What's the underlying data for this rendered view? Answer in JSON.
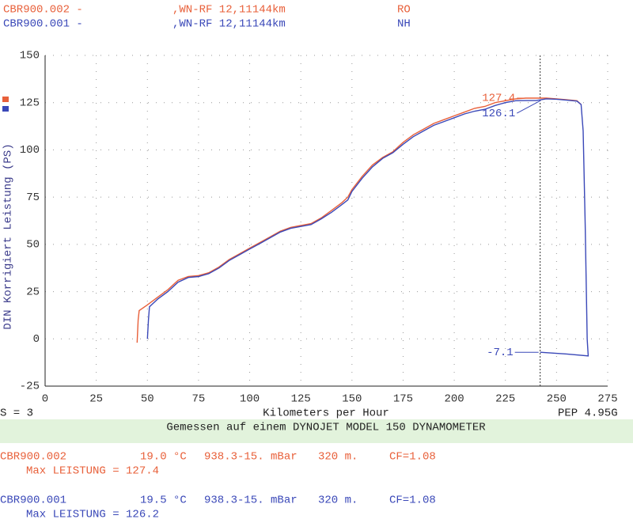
{
  "header": {
    "lines": [
      {
        "name": "CBR900.002 -",
        "info": ",WN-RF 12,11144km",
        "tag": "RO",
        "color": "#e8603a"
      },
      {
        "name": "CBR900.001 -",
        "info": ",WN-RF 12,11144km",
        "tag": "NH",
        "color": "#3a48b8"
      }
    ]
  },
  "chart_data": {
    "type": "line",
    "ylabel": "DIN Korrigiert Leistung (PS)",
    "xlabel": "Kilometers per Hour",
    "note_left": "S = 3",
    "note_right": "PEP 4.95G",
    "subtitle": "Gemessen auf einem DYNOJET MODEL 150 DYNAMOMETER",
    "xlim": [
      0,
      275
    ],
    "xticks": [
      0,
      25,
      50,
      75,
      100,
      125,
      150,
      175,
      200,
      225,
      250,
      275
    ],
    "ylim": [
      -25,
      150
    ],
    "yticks": [
      -25,
      0,
      25,
      50,
      75,
      100,
      125,
      150
    ],
    "grid": true,
    "vline": 242,
    "series": [
      {
        "name": "CBR900.002",
        "color": "#e8603a",
        "x": [
          45,
          45.5,
          46,
          50,
          55,
          60,
          65,
          70,
          75,
          80,
          85,
          90,
          95,
          100,
          105,
          110,
          115,
          120,
          125,
          130,
          135,
          140,
          145,
          148,
          150,
          155,
          160,
          165,
          170,
          175,
          180,
          185,
          190,
          195,
          200,
          205,
          210,
          215,
          220,
          225,
          230,
          235,
          240,
          245,
          250,
          255,
          260,
          262
        ],
        "values": [
          -2,
          10,
          15,
          18,
          22,
          26,
          31,
          33,
          33.5,
          35,
          38,
          42,
          45,
          48,
          51,
          54,
          57,
          59,
          60,
          61,
          64,
          68,
          72,
          75,
          79,
          86,
          92,
          96,
          99,
          104,
          108,
          111,
          114,
          116,
          118,
          120,
          122,
          123,
          125,
          126,
          127,
          127.4,
          127.4,
          127.4,
          127,
          126.5,
          126,
          124
        ]
      },
      {
        "name": "CBR900.001",
        "color": "#3a48b8",
        "x": [
          50,
          50.5,
          51,
          55,
          60,
          65,
          70,
          75,
          80,
          85,
          90,
          95,
          100,
          105,
          110,
          115,
          120,
          125,
          130,
          135,
          140,
          145,
          148,
          150,
          155,
          160,
          165,
          170,
          175,
          180,
          185,
          190,
          195,
          200,
          205,
          210,
          215,
          220,
          225,
          230,
          235,
          240,
          245,
          250,
          255,
          260,
          262,
          263,
          264,
          265,
          265.5,
          255,
          242
        ],
        "values": [
          0,
          10,
          17,
          21,
          25,
          30,
          32.5,
          33,
          34.5,
          37.5,
          41.5,
          44.5,
          47.5,
          50.5,
          53.5,
          56.5,
          58.5,
          59.5,
          60.5,
          63.5,
          67,
          71,
          73.5,
          78,
          85,
          91,
          95.5,
          98.5,
          103,
          107,
          110,
          113,
          115,
          117,
          119,
          120.5,
          121.5,
          123.5,
          125,
          126,
          126.1,
          126.1,
          127,
          126.8,
          126.3,
          125.8,
          124,
          110,
          60,
          0,
          -9,
          -8,
          -7.1
        ]
      }
    ],
    "annotations": [
      {
        "text": "127.4",
        "x": 243,
        "y": 127.4,
        "color": "#e8603a"
      },
      {
        "text": "126.1",
        "x": 243,
        "y": 126.1,
        "color": "#3a48b8"
      },
      {
        "text": "-7.1",
        "x": 242,
        "y": -7.1,
        "color": "#3a48b8"
      }
    ]
  },
  "footer": {
    "runs": [
      {
        "temp": "19.0 °C",
        "pressure": "938.3-15. mBar",
        "altitude": "320 m.",
        "cf": "CF=1.08",
        "max": "Max LEISTUNG = 127.4"
      },
      {
        "temp": "19.5 °C",
        "pressure": "938.3-15. mBar",
        "altitude": "320 m.",
        "cf": "CF=1.08",
        "max": "Max LEISTUNG = 126.2"
      }
    ]
  }
}
